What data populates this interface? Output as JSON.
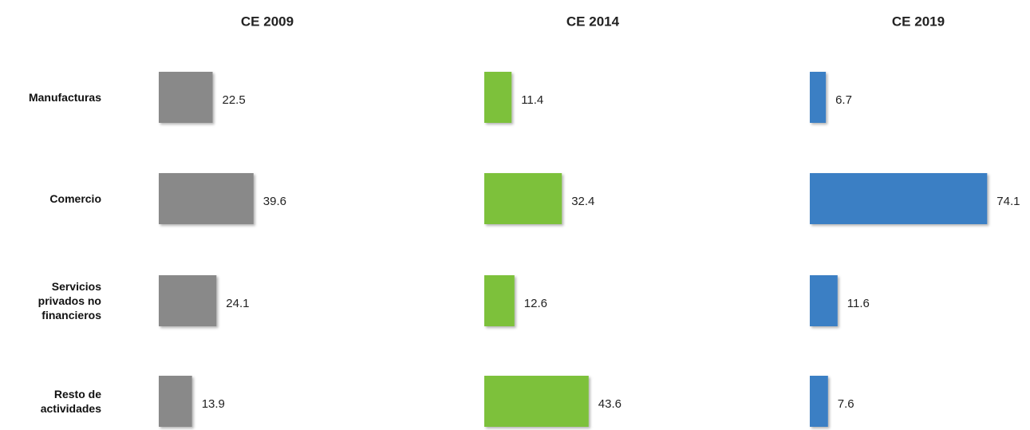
{
  "chart_data": {
    "type": "bar",
    "categories": [
      "Manufacturas",
      "Comercio",
      "Servicios privados no financieros",
      "Resto de actividades"
    ],
    "series": [
      {
        "name": "CE 2009",
        "color": "#898989",
        "values": [
          22.5,
          39.6,
          24.1,
          13.9
        ]
      },
      {
        "name": "CE 2014",
        "color": "#7dc13a",
        "values": [
          11.4,
          32.4,
          12.6,
          43.6
        ]
      },
      {
        "name": "CE 2019",
        "color": "#3a7fc4",
        "values": [
          6.7,
          74.1,
          11.6,
          7.6
        ]
      }
    ]
  }
}
